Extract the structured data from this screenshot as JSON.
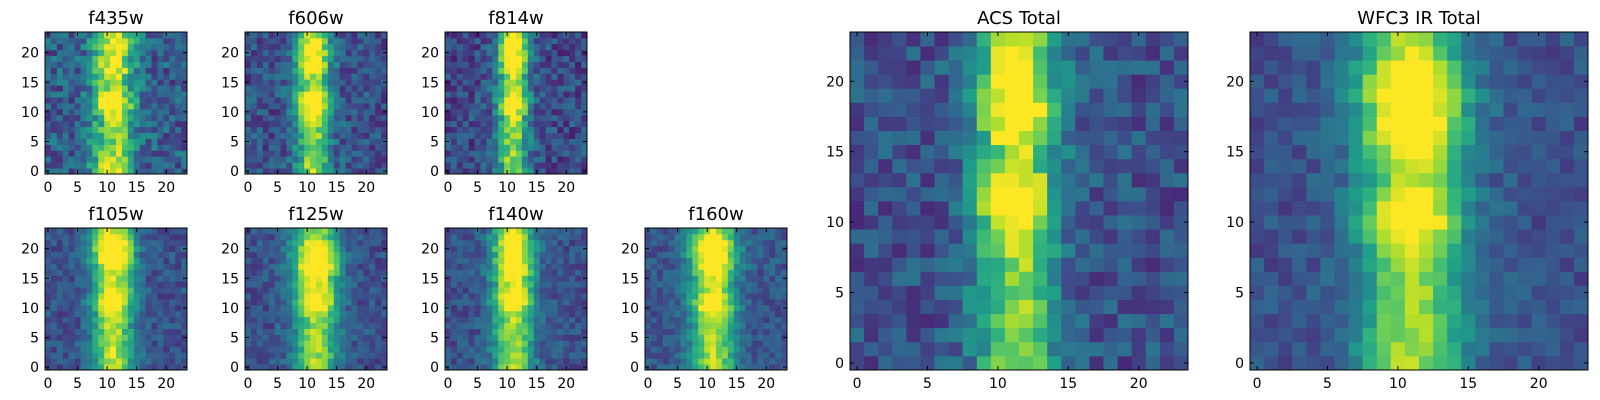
{
  "figure": {
    "background": "#ffffff",
    "colormap": "viridis",
    "colormap_stops": [
      "#440154",
      "#482878",
      "#3e4989",
      "#31688e",
      "#26828e",
      "#1f9e89",
      "#35b779",
      "#6ece58",
      "#b5de2b",
      "#fde725"
    ]
  },
  "chart_data": [
    {
      "type": "heatmap",
      "title": "f435w",
      "grid_size": [
        24,
        24
      ],
      "xticks": [
        0,
        5,
        10,
        15,
        20
      ],
      "yticks": [
        0,
        5,
        10,
        15,
        20
      ],
      "xlim": [
        0,
        24
      ],
      "ylim": [
        0,
        24
      ],
      "profile": {
        "center_x": 11.5,
        "width": 2.4,
        "base": 0.35,
        "peak": 0.55,
        "knots_y": [
          1,
          12,
          18,
          22
        ],
        "knot_boost": [
          0.15,
          0.3,
          0.2,
          0.15
        ],
        "noise": 0.35
      }
    },
    {
      "type": "heatmap",
      "title": "f606w",
      "grid_size": [
        24,
        24
      ],
      "xticks": [
        0,
        5,
        10,
        15,
        20
      ],
      "yticks": [
        0,
        5,
        10,
        15,
        20
      ],
      "xlim": [
        0,
        24
      ],
      "ylim": [
        0,
        24
      ],
      "profile": {
        "center_x": 11.5,
        "width": 2.0,
        "base": 0.3,
        "peak": 0.6,
        "knots_y": [
          12,
          19,
          22
        ],
        "knot_boost": [
          0.35,
          0.25,
          0.2
        ],
        "noise": 0.3
      }
    },
    {
      "type": "heatmap",
      "title": "f814w",
      "grid_size": [
        24,
        24
      ],
      "xticks": [
        0,
        5,
        10,
        15,
        20
      ],
      "yticks": [
        0,
        5,
        10,
        15,
        20
      ],
      "xlim": [
        0,
        24
      ],
      "ylim": [
        0,
        24
      ],
      "profile": {
        "center_x": 11.5,
        "width": 1.8,
        "base": 0.28,
        "peak": 0.62,
        "knots_y": [
          12,
          19,
          22
        ],
        "knot_boost": [
          0.35,
          0.3,
          0.25
        ],
        "noise": 0.3
      }
    },
    {
      "type": "heatmap",
      "title": "f105w",
      "grid_size": [
        24,
        24
      ],
      "xticks": [
        0,
        5,
        10,
        15,
        20
      ],
      "yticks": [
        0,
        5,
        10,
        15,
        20
      ],
      "xlim": [
        0,
        24
      ],
      "ylim": [
        0,
        24
      ],
      "profile": {
        "center_x": 11.5,
        "width": 2.4,
        "base": 0.3,
        "peak": 0.65,
        "knots_y": [
          12,
          19,
          21
        ],
        "knot_boost": [
          0.3,
          0.3,
          0.3
        ],
        "noise": 0.22
      }
    },
    {
      "type": "heatmap",
      "title": "f125w",
      "grid_size": [
        24,
        24
      ],
      "xticks": [
        0,
        5,
        10,
        15,
        20
      ],
      "yticks": [
        0,
        5,
        10,
        15,
        20
      ],
      "xlim": [
        0,
        24
      ],
      "ylim": [
        0,
        24
      ],
      "profile": {
        "center_x": 12,
        "width": 2.6,
        "base": 0.3,
        "peak": 0.6,
        "knots_y": [
          12,
          17,
          20
        ],
        "knot_boost": [
          0.3,
          0.35,
          0.3
        ],
        "noise": 0.22
      }
    },
    {
      "type": "heatmap",
      "title": "f140w",
      "grid_size": [
        24,
        24
      ],
      "xticks": [
        0,
        5,
        10,
        15,
        20
      ],
      "yticks": [
        0,
        5,
        10,
        15,
        20
      ],
      "xlim": [
        0,
        24
      ],
      "ylim": [
        0,
        24
      ],
      "profile": {
        "center_x": 11.5,
        "width": 2.4,
        "base": 0.3,
        "peak": 0.62,
        "knots_y": [
          12,
          17,
          21
        ],
        "knot_boost": [
          0.3,
          0.3,
          0.3
        ],
        "noise": 0.22
      }
    },
    {
      "type": "heatmap",
      "title": "f160w",
      "grid_size": [
        24,
        24
      ],
      "xticks": [
        0,
        5,
        10,
        15,
        20
      ],
      "yticks": [
        0,
        5,
        10,
        15,
        20
      ],
      "xlim": [
        0,
        24
      ],
      "ylim": [
        0,
        24
      ],
      "profile": {
        "center_x": 11.5,
        "width": 2.6,
        "base": 0.32,
        "peak": 0.62,
        "knots_y": [
          11,
          18,
          21
        ],
        "knot_boost": [
          0.25,
          0.3,
          0.35
        ],
        "noise": 0.2
      }
    },
    {
      "type": "heatmap",
      "title": "ACS Total",
      "grid_size": [
        24,
        24
      ],
      "xticks": [
        0,
        5,
        10,
        15,
        20
      ],
      "yticks": [
        0,
        5,
        10,
        15,
        20
      ],
      "xlim": [
        0,
        24
      ],
      "ylim": [
        0,
        24
      ],
      "profile": {
        "center_x": 11.8,
        "width": 2.0,
        "base": 0.3,
        "peak": 0.6,
        "knots_y": [
          12,
          18,
          21
        ],
        "knot_boost": [
          0.4,
          0.3,
          0.25
        ],
        "noise": 0.28
      }
    },
    {
      "type": "heatmap",
      "title": "WFC3 IR Total",
      "grid_size": [
        24,
        24
      ],
      "xticks": [
        0,
        5,
        10,
        15,
        20
      ],
      "yticks": [
        0,
        5,
        10,
        15,
        20
      ],
      "xlim": [
        0,
        24
      ],
      "ylim": [
        0,
        24
      ],
      "profile": {
        "center_x": 11.5,
        "width": 2.6,
        "base": 0.3,
        "peak": 0.62,
        "knots_y": [
          11,
          17,
          20
        ],
        "knot_boost": [
          0.3,
          0.3,
          0.38
        ],
        "noise": 0.18
      }
    }
  ]
}
